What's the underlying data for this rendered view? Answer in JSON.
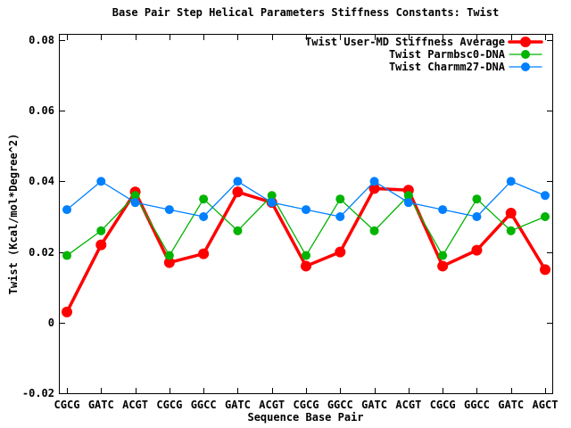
{
  "chart_data": {
    "type": "line",
    "title": "Base Pair Step Helical Parameters Stiffness Constants: Twist",
    "xlabel": "Sequence Base Pair",
    "ylabel": "Twist (Kcal/mol*Degree^2)",
    "categories": [
      "CGCG",
      "GATC",
      "ACGT",
      "CGCG",
      "GGCC",
      "GATC",
      "ACGT",
      "CGCG",
      "GGCC",
      "GATC",
      "ACGT",
      "CGCG",
      "GGCC",
      "GATC",
      "AGCT"
    ],
    "ylim": [
      -0.02,
      0.08
    ],
    "yticks": [
      -0.02,
      0,
      0.02,
      0.04,
      0.06,
      0.08
    ],
    "ytick_labels": [
      "-0.02",
      "0",
      "0.02",
      "0.04",
      "0.06",
      "0.08"
    ],
    "grid": false,
    "legend_position": "top-right-inside",
    "background_color": "#ffffff",
    "axis_color": "#000000",
    "series": [
      {
        "name": "Twist User-MD Stiffness Average",
        "color": "#ff0000",
        "line_width": 3.5,
        "marker": "circle",
        "marker_radius": 6,
        "values": [
          0.003,
          0.022,
          0.037,
          0.017,
          0.0195,
          0.037,
          0.034,
          0.016,
          0.02,
          0.038,
          0.0375,
          0.016,
          0.0205,
          0.031,
          0.015
        ]
      },
      {
        "name": "Twist Parmbsc0-DNA",
        "color": "#00b400",
        "line_width": 1.3,
        "marker": "circle",
        "marker_radius": 5,
        "values": [
          0.019,
          0.026,
          0.036,
          0.019,
          0.035,
          0.026,
          0.036,
          0.019,
          0.035,
          0.026,
          0.036,
          0.019,
          0.035,
          0.026,
          0.03
        ]
      },
      {
        "name": "Twist Charmm27-DNA",
        "color": "#0080ff",
        "line_width": 1.3,
        "marker": "circle",
        "marker_radius": 5,
        "values": [
          0.032,
          0.04,
          0.034,
          0.032,
          0.03,
          0.04,
          0.034,
          0.032,
          0.03,
          0.04,
          0.034,
          0.032,
          0.03,
          0.04,
          0.036
        ]
      }
    ]
  }
}
